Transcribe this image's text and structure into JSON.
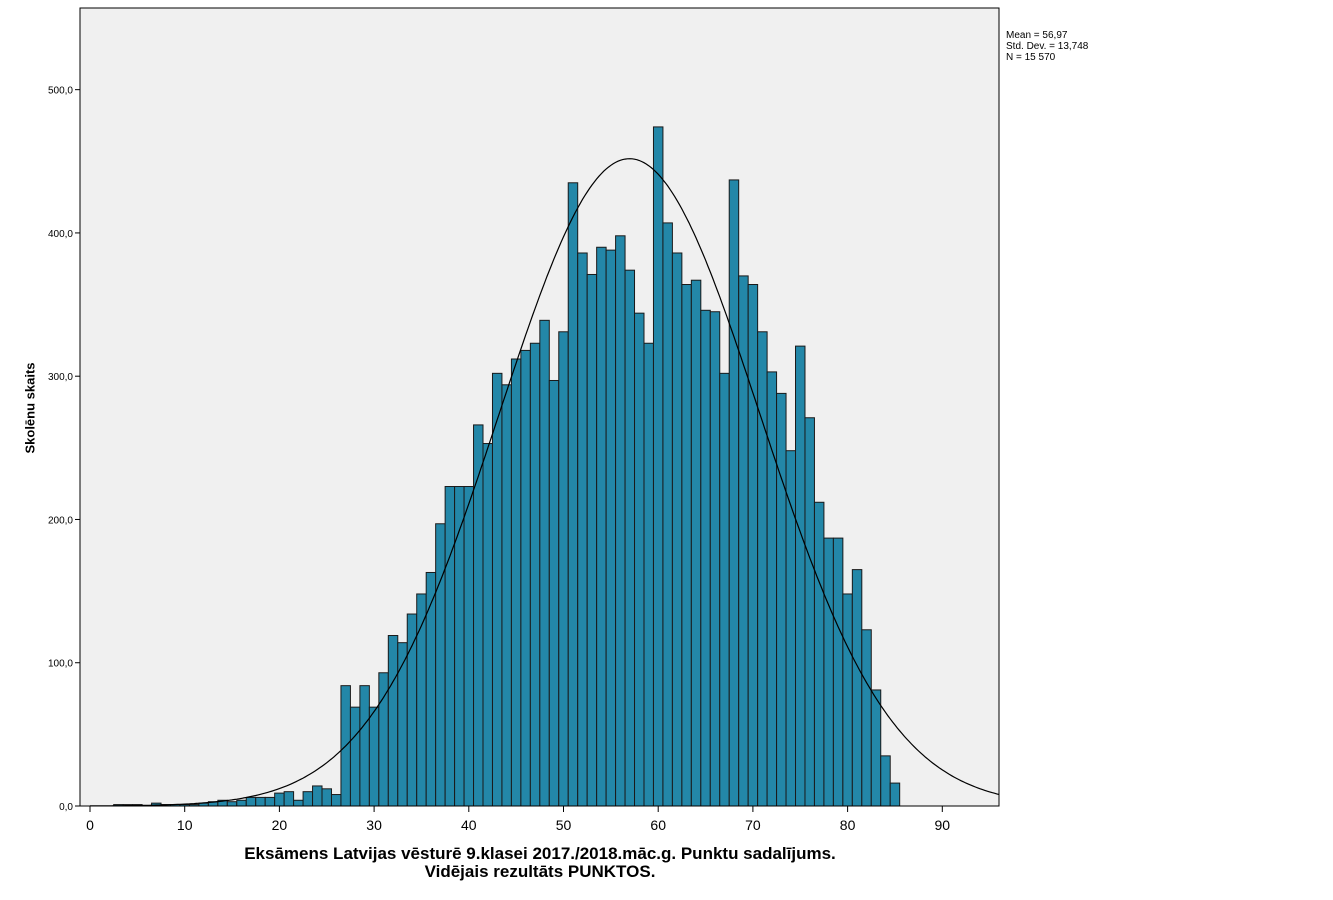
{
  "chart_data": {
    "type": "bar",
    "subtype": "histogram",
    "title": "",
    "xlabel_line1": "Eksāmens Latvijas vēsturē 9.klasei 2017./2018.māc.g. Punktu sadalījums.",
    "xlabel_line2": "Vidējais rezultāts PUNKTOS.",
    "ylabel": "Skolēnu skaits",
    "xlim": [
      -1,
      96
    ],
    "ylim": [
      0,
      557
    ],
    "xticks": [
      0,
      10,
      20,
      30,
      40,
      50,
      60,
      70,
      80,
      90
    ],
    "yticks": [
      0,
      100,
      200,
      300,
      400,
      500
    ],
    "ytick_labels": [
      "0,0",
      "100,0",
      "200,0",
      "300,0",
      "400,0",
      "500,0"
    ],
    "bin_width": 1,
    "x": [
      3,
      4,
      5,
      6,
      7,
      8,
      9,
      10,
      11,
      12,
      13,
      14,
      15,
      16,
      17,
      18,
      19,
      20,
      21,
      22,
      23,
      24,
      25,
      26,
      27,
      28,
      29,
      30,
      31,
      32,
      33,
      34,
      35,
      36,
      37,
      38,
      39,
      40,
      41,
      42,
      43,
      44,
      45,
      46,
      47,
      48,
      49,
      50,
      51,
      52,
      53,
      54,
      55,
      56,
      57,
      58,
      59,
      60,
      61,
      62,
      63,
      64,
      65,
      66,
      67,
      68,
      69,
      70,
      71,
      72,
      73,
      74,
      75,
      76,
      77,
      78,
      79,
      80,
      81,
      82,
      83,
      84,
      85
    ],
    "values": [
      1,
      1,
      1,
      0,
      2,
      1,
      1,
      1,
      1,
      2,
      3,
      4,
      3,
      4,
      6,
      6,
      6,
      9,
      10,
      4,
      10,
      14,
      12,
      8,
      84,
      69,
      84,
      69,
      93,
      119,
      114,
      134,
      148,
      163,
      197,
      223,
      223,
      223,
      266,
      253,
      302,
      294,
      312,
      318,
      323,
      339,
      297,
      331,
      435,
      386,
      371,
      390,
      388,
      398,
      374,
      344,
      323,
      474,
      407,
      386,
      364,
      367,
      346,
      345,
      302,
      437,
      370,
      364,
      331,
      303,
      288,
      248,
      321,
      271,
      212,
      187,
      187,
      148,
      165,
      123,
      81,
      35,
      16
    ],
    "normal_curve": {
      "mean": 56.97,
      "std": 13.748,
      "n": 15570
    },
    "stats": [
      "Mean = 56,97",
      "Std. Dev. = 13,748",
      "N = 15 570"
    ],
    "bar_color": "#2387a8",
    "plot_bg": "#f0f0f0"
  }
}
